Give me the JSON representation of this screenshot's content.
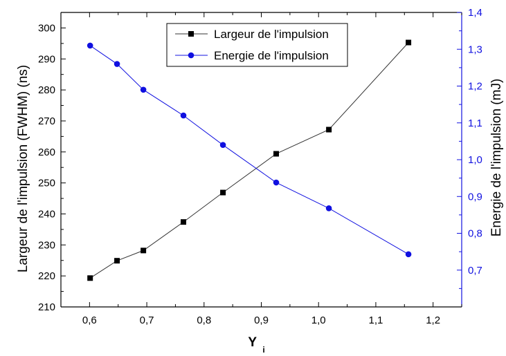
{
  "chart_data": {
    "type": "line",
    "xlabel_main": "Y",
    "xlabel_sub": "i",
    "ylabel_left": "Largeur de l'impulsion (FWHM) (ns)",
    "ylabel_right": "Energie de l'impulsion (mJ)",
    "xlim": [
      0.55,
      1.25
    ],
    "ylim_left": [
      210,
      305
    ],
    "ylim_right": [
      0.6,
      1.4
    ],
    "x_ticks": [
      "0,6",
      "0,7",
      "0,8",
      "0,9",
      "1,0",
      "1,1",
      "1,2"
    ],
    "y_left_ticks": [
      "210",
      "220",
      "230",
      "240",
      "250",
      "260",
      "270",
      "280",
      "290",
      "300"
    ],
    "y_right_ticks": [
      "0,7",
      "0,8",
      "0,9",
      "1,0",
      "1,1",
      "1,2",
      "1,3",
      "1,4"
    ],
    "legend_position": "top-center",
    "grid": false,
    "series": [
      {
        "name": "Largeur de l'impulsion",
        "axis": "left",
        "marker": "square",
        "color": "#000000",
        "line_color": "#333333",
        "x": [
          0.601,
          0.648,
          0.694,
          0.764,
          0.833,
          0.926,
          1.018,
          1.157
        ],
        "y": [
          219.3,
          224.9,
          228.2,
          237.4,
          246.9,
          259.4,
          267.2,
          295.3
        ]
      },
      {
        "name": "Energie de l'impulsion",
        "axis": "right",
        "marker": "circle",
        "color": "#1010e0",
        "line_color": "#1010e0",
        "x": [
          0.601,
          0.648,
          0.694,
          0.764,
          0.833,
          0.926,
          1.018,
          1.157
        ],
        "y": [
          1.31,
          1.26,
          1.19,
          1.12,
          1.04,
          0.938,
          0.868,
          0.743
        ]
      }
    ]
  }
}
